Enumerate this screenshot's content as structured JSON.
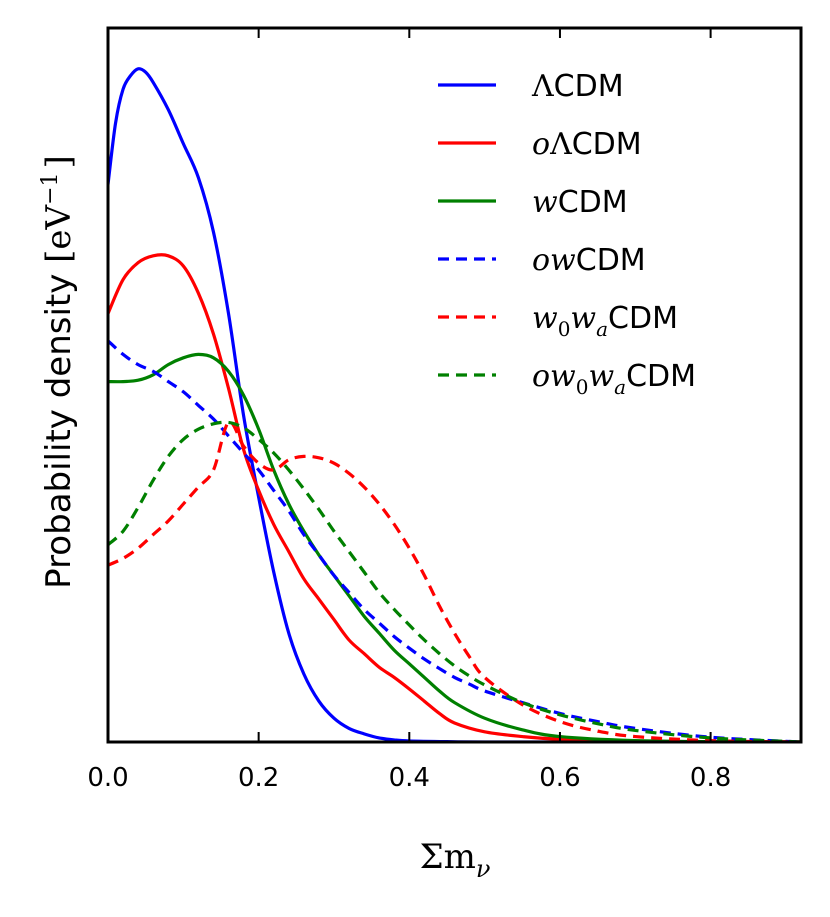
{
  "chart_data": {
    "type": "line",
    "title": "",
    "xlabel": "Σmν",
    "xlabel_parts": {
      "main": "Σm",
      "sub": "ν"
    },
    "ylabel": "Probability density [eV⁻¹]",
    "ylabel_parts": {
      "text": "Probability density ",
      "unit_open": "[",
      "unit_base": "eV",
      "unit_exp": "−1",
      "unit_close": "]"
    },
    "xlim": [
      0.0,
      0.92
    ],
    "ylim": [
      0,
      10.5
    ],
    "xticks": [
      0.0,
      0.2,
      0.4,
      0.6,
      0.8
    ],
    "xtick_labels": [
      "0.0",
      "0.2",
      "0.4",
      "0.6",
      "0.8"
    ],
    "grid": false,
    "legend_position": "top-right",
    "series": [
      {
        "name": "ΛCDM",
        "label_parts": [
          {
            "t": "Λ",
            "s": "math-up"
          },
          {
            "t": "CDM",
            "s": ""
          }
        ],
        "color": "#0000ff",
        "dash": "solid",
        "x": [
          0.0,
          0.01,
          0.02,
          0.03,
          0.04,
          0.05,
          0.06,
          0.08,
          0.1,
          0.12,
          0.14,
          0.16,
          0.18,
          0.2,
          0.22,
          0.24,
          0.26,
          0.28,
          0.3,
          0.32,
          0.34,
          0.36,
          0.38,
          0.4,
          0.45,
          0.5,
          0.6,
          0.92
        ],
        "y": [
          8.2,
          9.1,
          9.6,
          9.8,
          9.9,
          9.85,
          9.7,
          9.3,
          8.8,
          8.3,
          7.5,
          6.3,
          4.8,
          3.6,
          2.5,
          1.6,
          1.0,
          0.6,
          0.35,
          0.2,
          0.12,
          0.06,
          0.03,
          0.015,
          0.005,
          0.0,
          0.0,
          0.0
        ]
      },
      {
        "name": "oΛCDM",
        "label_parts": [
          {
            "t": "o",
            "s": "math"
          },
          {
            "t": "Λ",
            "s": "math-up"
          },
          {
            "t": "CDM",
            "s": ""
          }
        ],
        "color": "#ff0000",
        "dash": "solid",
        "x": [
          0.0,
          0.02,
          0.04,
          0.06,
          0.08,
          0.1,
          0.12,
          0.14,
          0.16,
          0.18,
          0.2,
          0.22,
          0.24,
          0.26,
          0.28,
          0.3,
          0.32,
          0.34,
          0.36,
          0.38,
          0.4,
          0.42,
          0.44,
          0.46,
          0.5,
          0.55,
          0.6,
          0.7,
          0.92
        ],
        "y": [
          6.3,
          6.8,
          7.05,
          7.15,
          7.15,
          7.0,
          6.6,
          6.0,
          5.2,
          4.3,
          3.7,
          3.2,
          2.8,
          2.4,
          2.1,
          1.8,
          1.5,
          1.3,
          1.1,
          0.95,
          0.78,
          0.6,
          0.42,
          0.28,
          0.15,
          0.08,
          0.04,
          0.01,
          0.0
        ]
      },
      {
        "name": "wCDM",
        "label_parts": [
          {
            "t": "w",
            "s": "math"
          },
          {
            "t": "CDM",
            "s": ""
          }
        ],
        "color": "#008000",
        "dash": "solid",
        "x": [
          0.0,
          0.02,
          0.04,
          0.06,
          0.08,
          0.1,
          0.12,
          0.14,
          0.16,
          0.18,
          0.2,
          0.22,
          0.24,
          0.26,
          0.28,
          0.3,
          0.32,
          0.34,
          0.36,
          0.38,
          0.4,
          0.42,
          0.44,
          0.46,
          0.5,
          0.55,
          0.6,
          0.7,
          0.8,
          0.92
        ],
        "y": [
          5.3,
          5.3,
          5.32,
          5.4,
          5.55,
          5.65,
          5.7,
          5.65,
          5.45,
          5.1,
          4.6,
          4.0,
          3.5,
          3.1,
          2.75,
          2.45,
          2.15,
          1.85,
          1.6,
          1.35,
          1.15,
          0.95,
          0.75,
          0.58,
          0.35,
          0.18,
          0.08,
          0.02,
          0.005,
          0.0
        ]
      },
      {
        "name": "owCDM",
        "label_parts": [
          {
            "t": "ow",
            "s": "math"
          },
          {
            "t": "CDM",
            "s": ""
          }
        ],
        "color": "#0000ff",
        "dash": "dashed",
        "x": [
          0.0,
          0.02,
          0.04,
          0.06,
          0.08,
          0.1,
          0.12,
          0.14,
          0.16,
          0.18,
          0.2,
          0.22,
          0.24,
          0.26,
          0.28,
          0.3,
          0.32,
          0.34,
          0.36,
          0.38,
          0.4,
          0.42,
          0.44,
          0.46,
          0.48,
          0.5,
          0.55,
          0.6,
          0.65,
          0.7,
          0.8,
          0.92
        ],
        "y": [
          5.9,
          5.7,
          5.55,
          5.45,
          5.3,
          5.15,
          4.95,
          4.75,
          4.5,
          4.25,
          4.0,
          3.7,
          3.4,
          3.05,
          2.75,
          2.45,
          2.2,
          1.95,
          1.75,
          1.55,
          1.38,
          1.22,
          1.08,
          0.95,
          0.85,
          0.75,
          0.58,
          0.42,
          0.3,
          0.2,
          0.07,
          0.0
        ]
      },
      {
        "name": "w0waCDM",
        "label_parts": [
          {
            "t": "w",
            "s": "math"
          },
          {
            "t": "0",
            "s": "math-up sub"
          },
          {
            "t": "w",
            "s": "math"
          },
          {
            "t": "a",
            "s": "math sub"
          },
          {
            "t": "CDM",
            "s": ""
          }
        ],
        "color": "#ff0000",
        "dash": "dashed",
        "x": [
          0.0,
          0.02,
          0.04,
          0.06,
          0.08,
          0.1,
          0.12,
          0.14,
          0.16,
          0.18,
          0.2,
          0.22,
          0.24,
          0.26,
          0.28,
          0.3,
          0.32,
          0.34,
          0.36,
          0.38,
          0.4,
          0.42,
          0.44,
          0.46,
          0.48,
          0.5,
          0.55,
          0.6,
          0.65,
          0.7,
          0.8,
          0.92
        ],
        "y": [
          2.6,
          2.7,
          2.85,
          3.05,
          3.25,
          3.5,
          3.75,
          4.0,
          4.7,
          4.35,
          4.1,
          4.0,
          4.15,
          4.2,
          4.18,
          4.1,
          3.95,
          3.75,
          3.5,
          3.2,
          2.85,
          2.45,
          2.0,
          1.6,
          1.25,
          0.95,
          0.55,
          0.3,
          0.16,
          0.08,
          0.02,
          0.0
        ]
      },
      {
        "name": "ow0waCDM",
        "label_parts": [
          {
            "t": "ow",
            "s": "math"
          },
          {
            "t": "0",
            "s": "math-up sub"
          },
          {
            "t": "w",
            "s": "math"
          },
          {
            "t": "a",
            "s": "math sub"
          },
          {
            "t": "CDM",
            "s": ""
          }
        ],
        "color": "#008000",
        "dash": "dashed",
        "x": [
          0.0,
          0.02,
          0.04,
          0.06,
          0.08,
          0.1,
          0.12,
          0.14,
          0.16,
          0.18,
          0.2,
          0.22,
          0.24,
          0.26,
          0.28,
          0.3,
          0.32,
          0.34,
          0.36,
          0.38,
          0.4,
          0.42,
          0.44,
          0.46,
          0.48,
          0.5,
          0.55,
          0.6,
          0.65,
          0.7,
          0.8,
          0.92
        ],
        "y": [
          2.9,
          3.1,
          3.45,
          3.85,
          4.2,
          4.45,
          4.6,
          4.68,
          4.7,
          4.62,
          4.45,
          4.25,
          4.0,
          3.72,
          3.42,
          3.1,
          2.8,
          2.5,
          2.2,
          1.95,
          1.72,
          1.5,
          1.3,
          1.12,
          0.97,
          0.84,
          0.58,
          0.4,
          0.27,
          0.17,
          0.06,
          0.0
        ]
      }
    ]
  }
}
